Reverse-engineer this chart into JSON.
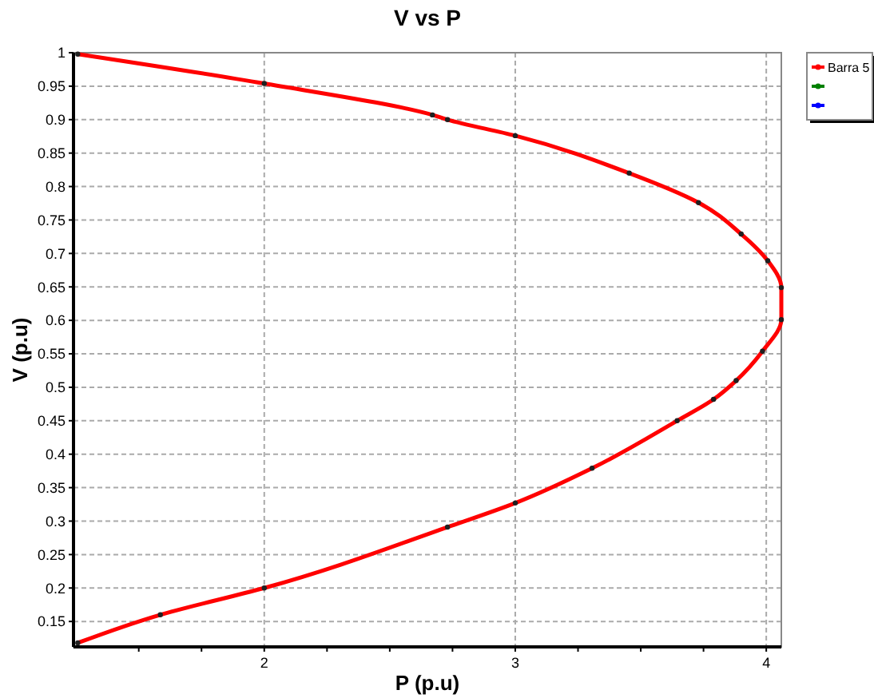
{
  "chart_data": {
    "type": "line",
    "title": "V vs P",
    "xlabel": "P (p.u)",
    "ylabel": "V (p.u)",
    "xlim": [
      1.24,
      4.06
    ],
    "ylim": [
      0.112,
      1
    ],
    "xticks": [
      {
        "value": 1.5,
        "label": null
      },
      {
        "value": 1.75,
        "label": null
      },
      2,
      {
        "value": 2.25,
        "label": null
      },
      {
        "value": 2.5,
        "label": null
      },
      {
        "value": 2.75,
        "label": null
      },
      3,
      {
        "value": 3.25,
        "label": null
      },
      {
        "value": 3.5,
        "label": null
      },
      {
        "value": 3.75,
        "label": null
      },
      4
    ],
    "yticks": [
      0.15,
      0.2,
      0.25,
      0.3,
      0.35,
      0.4,
      0.45,
      0.5,
      0.55,
      0.6,
      0.65,
      0.7,
      0.75,
      0.8,
      0.85,
      0.9,
      0.95,
      1
    ],
    "grid": true,
    "legend": "top right",
    "marker": "circle",
    "line_style": "solid",
    "series": [
      {
        "name": "Barra 5",
        "color": "#ff0000",
        "x": [
          1.257,
          2.0,
          2.67,
          2.73,
          3.0,
          3.454,
          3.73,
          3.9,
          4.006,
          4.06,
          4.06,
          3.985,
          3.88,
          3.79,
          3.645,
          3.306,
          3.0,
          2.73,
          2.0,
          1.586,
          1.257
        ],
        "values": [
          0.998,
          0.954,
          0.907,
          0.9,
          0.876,
          0.82,
          0.776,
          0.729,
          0.689,
          0.649,
          0.601,
          0.554,
          0.51,
          0.482,
          0.45,
          0.379,
          0.327,
          0.291,
          0.2,
          0.16,
          0.118
        ]
      },
      {
        "color": "#008000"
      },
      {
        "color": "#0000ff"
      }
    ]
  }
}
